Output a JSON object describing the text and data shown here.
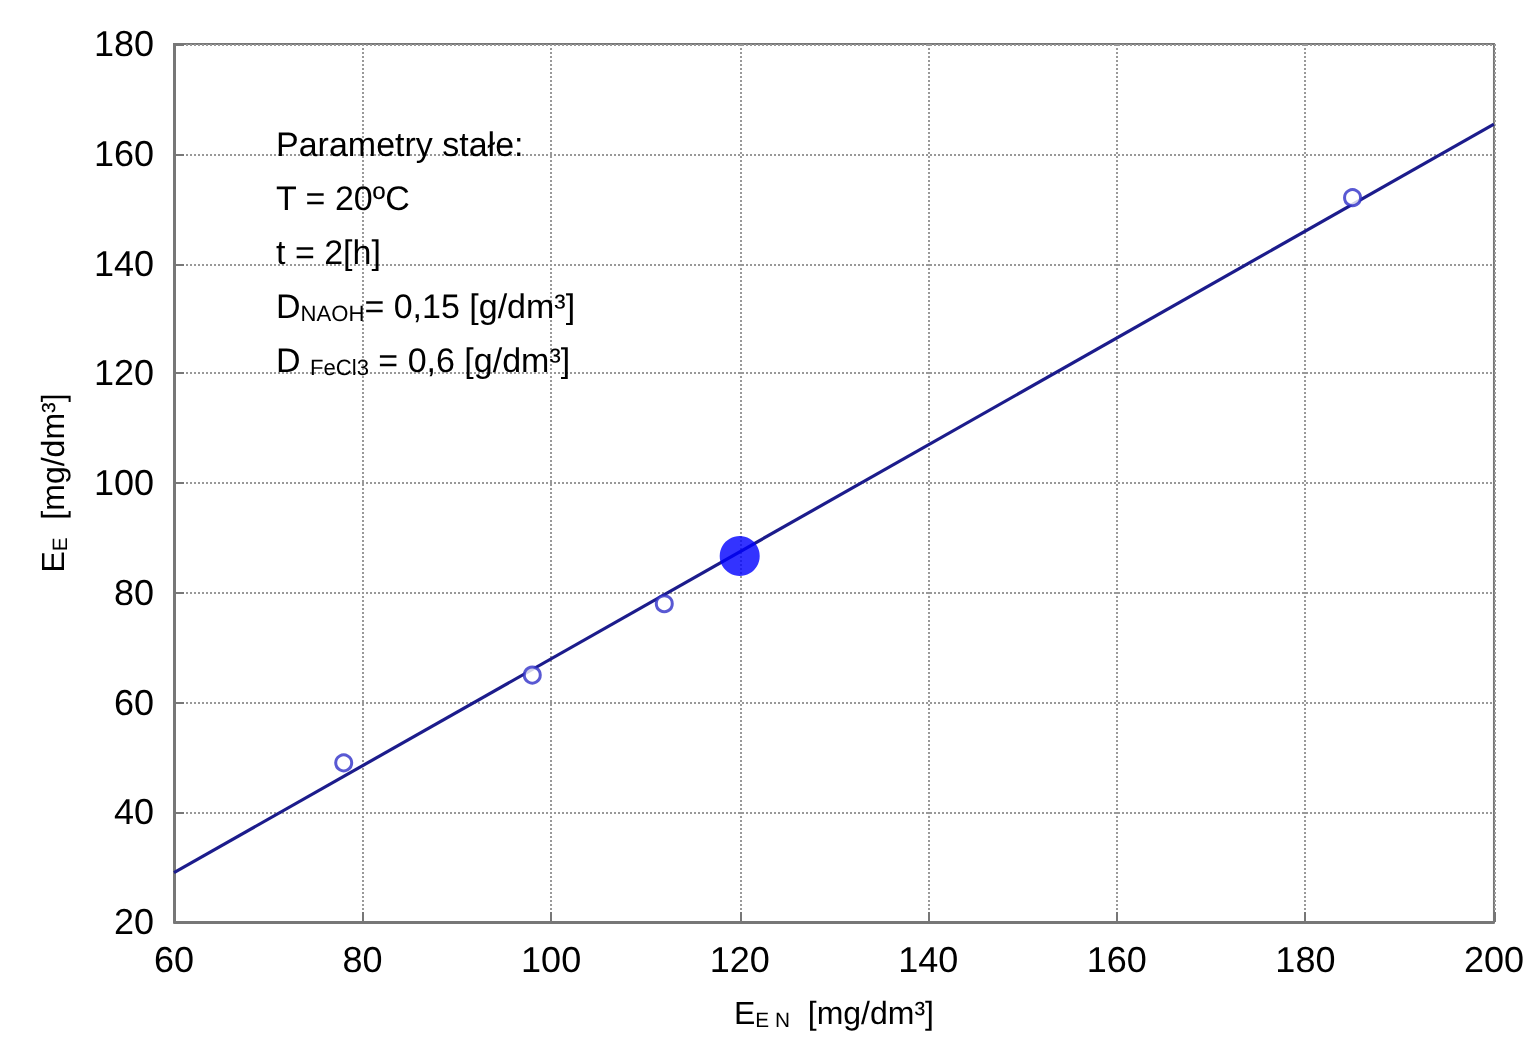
{
  "chart_data": {
    "type": "scatter",
    "xlabel": "E$_{E N}$  [mg/dm³]",
    "ylabel": "E$_{E}$  [mg/dm³]",
    "annotations": [
      "Parametry stałe:",
      "T = 20ºC",
      "t = 2[h]",
      "D$_{NAOH}$= 0,15 [g/dm³]",
      "D $_{FeCl3}$ = 0,6 [g/dm³]"
    ],
    "series": [
      {
        "color": "#3030c8",
        "marker": "circle",
        "x": [
          78,
          98,
          112,
          185
        ],
        "values": [
          49,
          65,
          78,
          152
        ]
      },
      {
        "color": "#0000ff",
        "marker": "circle",
        "x": [
          120
        ],
        "values": [
          86.7
        ]
      },
      {
        "type": "line",
        "color": "#1c1c8c",
        "marker": "none",
        "x": [
          60,
          200
        ],
        "values": [
          29,
          165.4
        ]
      }
    ],
    "xlim": [
      60,
      200
    ],
    "xticks": [
      60,
      80,
      100,
      120,
      140,
      160,
      180,
      200
    ],
    "ylim": [
      20,
      180
    ],
    "yticks": [
      20,
      40,
      60,
      80,
      100,
      120,
      140,
      160,
      180
    ],
    "grid": true
  }
}
